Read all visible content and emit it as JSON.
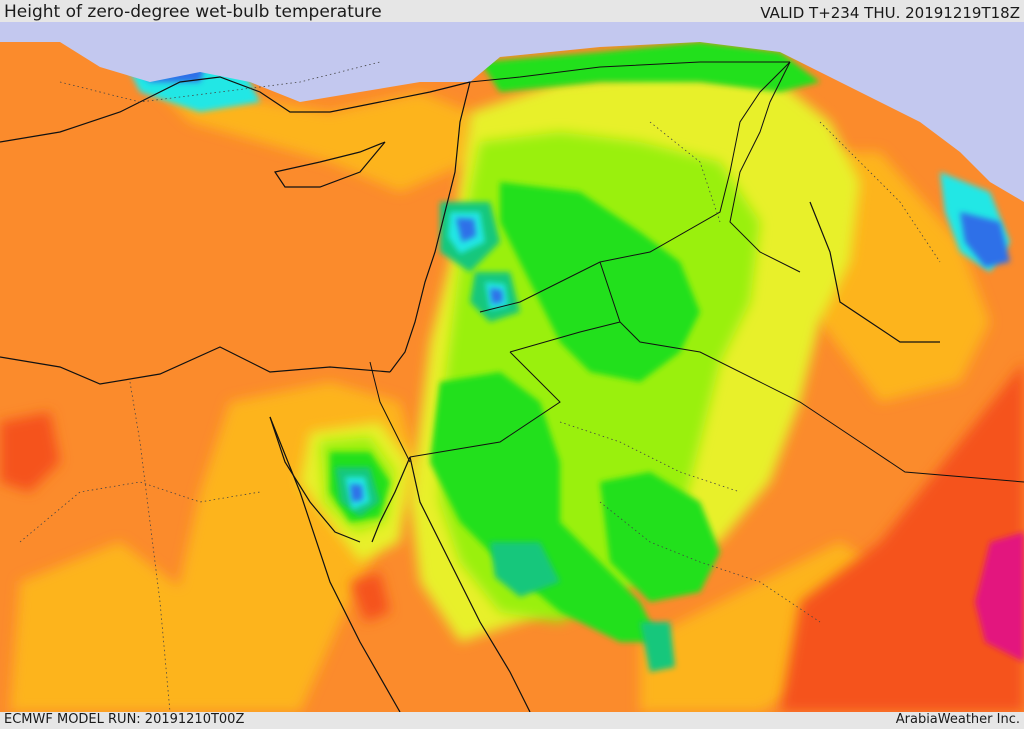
{
  "header": {
    "title": "Height of zero-degree wet-bulb temperature",
    "valid": "VALID T+234 THU. 20191219T18Z"
  },
  "footer": {
    "model_run": "ECMWF MODEL RUN: 20191210T00Z",
    "brand": "ArabiaWeather Inc."
  },
  "colors": {
    "sea": "#fb8b2c",
    "lightOrange": "#fdb41d",
    "yellow": "#e8f02b",
    "lime": "#9af00e",
    "green": "#22e01a",
    "teal": "#18c77b",
    "cyan": "#22e7e5",
    "blue": "#2f6fe8",
    "lavender": "#c3c8ef",
    "redOrange": "#f5521b",
    "magenta": "#e3197e",
    "border": "#111111",
    "internal": "#444444"
  }
}
